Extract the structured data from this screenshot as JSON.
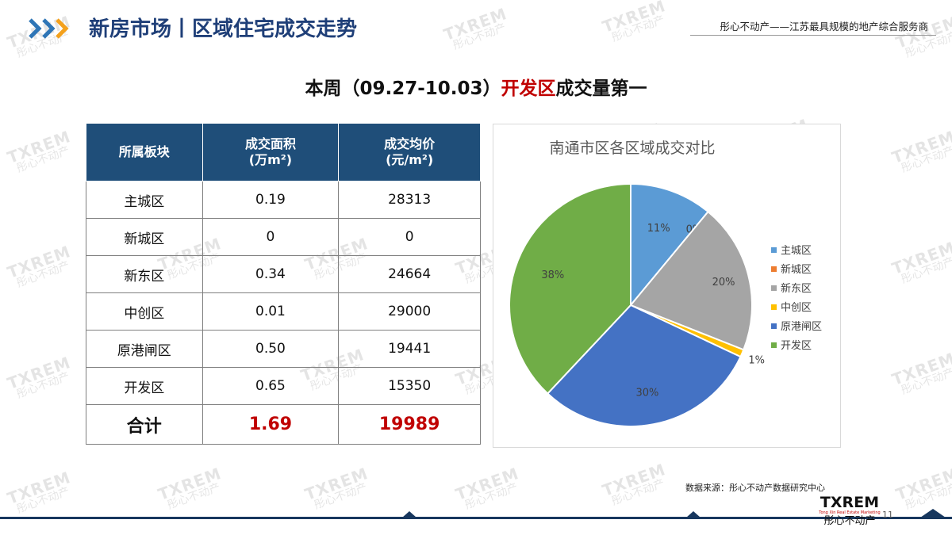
{
  "header": {
    "title": "新房市场丨区域住宅成交走势",
    "tagline": "彤心不动产——江苏最具规模的地产综合服务商"
  },
  "headline": {
    "prefix": "本周（09.27-10.03）",
    "highlight": "开发区",
    "suffix": "成交量第一"
  },
  "table": {
    "headers": [
      "所属板块",
      "成交面积",
      "(万m²)",
      "成交均价",
      "(元/m²)"
    ],
    "rows": [
      [
        "主城区",
        "0.19",
        "28313"
      ],
      [
        "新城区",
        "0",
        "0"
      ],
      [
        "新东区",
        "0.34",
        "24664"
      ],
      [
        "中创区",
        "0.01",
        "29000"
      ],
      [
        "原港闸区",
        "0.50",
        "19441"
      ],
      [
        "开发区",
        "0.65",
        "15350"
      ]
    ],
    "total": [
      "合计",
      "1.69",
      "19989"
    ]
  },
  "chart_data": {
    "type": "pie",
    "title": "南通市区各区域成交对比",
    "categories": [
      "主城区",
      "新城区",
      "新东区",
      "中创区",
      "原港闸区",
      "开发区"
    ],
    "values": [
      11,
      0,
      20,
      1,
      30,
      38
    ],
    "labels": [
      "11%",
      "0%",
      "20%",
      "1%",
      "30%",
      "38%"
    ],
    "colors": [
      "#5b9bd5",
      "#ed7d31",
      "#a5a5a5",
      "#ffc000",
      "#4472c4",
      "#70ad47"
    ],
    "legend": "right"
  },
  "source": "数据来源：彤心不动产数据研究中心",
  "brand": {
    "name": "TXREM",
    "sub": "Tong Xin Real Estate Marketing",
    "cn": "彤心不动产"
  },
  "watermark": {
    "text": "TXREM",
    "cn": "彤心不动产"
  },
  "page_number": "11"
}
